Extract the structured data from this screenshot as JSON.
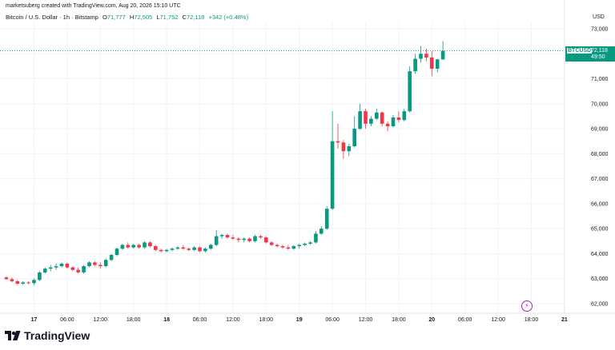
{
  "header": {
    "created_by": "marketsuberg created with TradingView.com, Aug 20, 2026 15:10 UTC"
  },
  "legend": {
    "title": "Bitcoin / U.S. Dollar · 1h · Bitstamp",
    "o_label": "O",
    "o_value": "71,777",
    "h_label": "H",
    "h_value": "72,505",
    "l_label": "L",
    "l_value": "71,752",
    "c_label": "C",
    "c_value": "72,118",
    "change": "+342 (+0.48%)"
  },
  "currency": "USD",
  "price_tag": {
    "symbol": "BTCUSD",
    "price": "72,118",
    "countdown": "49:50"
  },
  "logo_text": "TradingView",
  "colors": {
    "up": "#089981",
    "down": "#f23645",
    "grid": "#f0f3fa",
    "text": "#131722",
    "marker": "#9c27b0"
  },
  "chart_data": {
    "type": "candlestick",
    "ylim": [
      61600,
      73200
    ],
    "y_ticks": [
      62000,
      63000,
      64000,
      65000,
      66000,
      67000,
      68000,
      69000,
      70000,
      71000,
      72000,
      73000
    ],
    "y_tick_labels": [
      "62,000",
      "63,000",
      "64,000",
      "65,000",
      "66,000",
      "67,000",
      "68,000",
      "69,000",
      "70,000",
      "71,000",
      "72,000",
      "73,000"
    ],
    "x_ticks": [
      {
        "label": "17",
        "bold": true,
        "index": 5
      },
      {
        "label": "06:00",
        "bold": false,
        "index": 11
      },
      {
        "label": "12:00",
        "bold": false,
        "index": 17
      },
      {
        "label": "18:00",
        "bold": false,
        "index": 23
      },
      {
        "label": "18",
        "bold": true,
        "index": 29
      },
      {
        "label": "06:00",
        "bold": false,
        "index": 35
      },
      {
        "label": "12:00",
        "bold": false,
        "index": 41
      },
      {
        "label": "18:00",
        "bold": false,
        "index": 47
      },
      {
        "label": "19",
        "bold": true,
        "index": 53
      },
      {
        "label": "06:00",
        "bold": false,
        "index": 59
      },
      {
        "label": "12:00",
        "bold": false,
        "index": 65
      },
      {
        "label": "18:00",
        "bold": false,
        "index": 71
      },
      {
        "label": "20",
        "bold": true,
        "index": 77
      },
      {
        "label": "06:00",
        "bold": false,
        "index": 83
      },
      {
        "label": "12:00",
        "bold": false,
        "index": 89
      },
      {
        "label": "18:00",
        "bold": false,
        "index": 95
      },
      {
        "label": "21",
        "bold": true,
        "index": 101
      }
    ],
    "last_price": 72118,
    "candles": [
      {
        "o": 63050,
        "h": 63100,
        "l": 62950,
        "c": 62980
      },
      {
        "o": 62980,
        "h": 63050,
        "l": 62850,
        "c": 62900
      },
      {
        "o": 62900,
        "h": 62950,
        "l": 62750,
        "c": 62800
      },
      {
        "o": 62800,
        "h": 62900,
        "l": 62750,
        "c": 62850
      },
      {
        "o": 62850,
        "h": 62900,
        "l": 62780,
        "c": 62820
      },
      {
        "o": 62820,
        "h": 63000,
        "l": 62750,
        "c": 62950
      },
      {
        "o": 62950,
        "h": 63300,
        "l": 62900,
        "c": 63250
      },
      {
        "o": 63250,
        "h": 63450,
        "l": 63200,
        "c": 63400
      },
      {
        "o": 63400,
        "h": 63550,
        "l": 63300,
        "c": 63450
      },
      {
        "o": 63450,
        "h": 63600,
        "l": 63350,
        "c": 63500
      },
      {
        "o": 63500,
        "h": 63650,
        "l": 63450,
        "c": 63600
      },
      {
        "o": 63600,
        "h": 63650,
        "l": 63400,
        "c": 63450
      },
      {
        "o": 63450,
        "h": 63500,
        "l": 63300,
        "c": 63350
      },
      {
        "o": 63350,
        "h": 63450,
        "l": 63200,
        "c": 63250
      },
      {
        "o": 63250,
        "h": 63550,
        "l": 63200,
        "c": 63500
      },
      {
        "o": 63500,
        "h": 63700,
        "l": 63450,
        "c": 63650
      },
      {
        "o": 63650,
        "h": 63700,
        "l": 63500,
        "c": 63550
      },
      {
        "o": 63550,
        "h": 63650,
        "l": 63400,
        "c": 63500
      },
      {
        "o": 63500,
        "h": 63800,
        "l": 63450,
        "c": 63750
      },
      {
        "o": 63750,
        "h": 64000,
        "l": 63700,
        "c": 63950
      },
      {
        "o": 63950,
        "h": 64250,
        "l": 63900,
        "c": 64200
      },
      {
        "o": 64200,
        "h": 64400,
        "l": 64150,
        "c": 64350
      },
      {
        "o": 64350,
        "h": 64450,
        "l": 64200,
        "c": 64250
      },
      {
        "o": 64250,
        "h": 64400,
        "l": 64200,
        "c": 64350
      },
      {
        "o": 64350,
        "h": 64400,
        "l": 64200,
        "c": 64250
      },
      {
        "o": 64250,
        "h": 64500,
        "l": 64200,
        "c": 64450
      },
      {
        "o": 64450,
        "h": 64500,
        "l": 64250,
        "c": 64300
      },
      {
        "o": 64300,
        "h": 64350,
        "l": 64100,
        "c": 64150
      },
      {
        "o": 64150,
        "h": 64200,
        "l": 64050,
        "c": 64100
      },
      {
        "o": 64100,
        "h": 64200,
        "l": 64050,
        "c": 64150
      },
      {
        "o": 64150,
        "h": 64250,
        "l": 64100,
        "c": 64200
      },
      {
        "o": 64200,
        "h": 64300,
        "l": 64150,
        "c": 64250
      },
      {
        "o": 64250,
        "h": 64350,
        "l": 64150,
        "c": 64200
      },
      {
        "o": 64200,
        "h": 64250,
        "l": 64100,
        "c": 64150
      },
      {
        "o": 64150,
        "h": 64300,
        "l": 64100,
        "c": 64250
      },
      {
        "o": 64250,
        "h": 64300,
        "l": 64050,
        "c": 64100
      },
      {
        "o": 64100,
        "h": 64250,
        "l": 64050,
        "c": 64200
      },
      {
        "o": 64200,
        "h": 64400,
        "l": 64150,
        "c": 64350
      },
      {
        "o": 64350,
        "h": 64950,
        "l": 64300,
        "c": 64700
      },
      {
        "o": 64700,
        "h": 64800,
        "l": 64600,
        "c": 64750
      },
      {
        "o": 64750,
        "h": 64800,
        "l": 64600,
        "c": 64650
      },
      {
        "o": 64650,
        "h": 64750,
        "l": 64550,
        "c": 64600
      },
      {
        "o": 64600,
        "h": 64650,
        "l": 64450,
        "c": 64550
      },
      {
        "o": 64550,
        "h": 64650,
        "l": 64450,
        "c": 64600
      },
      {
        "o": 64600,
        "h": 64650,
        "l": 64450,
        "c": 64500
      },
      {
        "o": 64500,
        "h": 64750,
        "l": 64450,
        "c": 64700
      },
      {
        "o": 64700,
        "h": 64750,
        "l": 64600,
        "c": 64650
      },
      {
        "o": 64650,
        "h": 64700,
        "l": 64400,
        "c": 64450
      },
      {
        "o": 64450,
        "h": 64500,
        "l": 64300,
        "c": 64350
      },
      {
        "o": 64350,
        "h": 64400,
        "l": 64250,
        "c": 64300
      },
      {
        "o": 64300,
        "h": 64350,
        "l": 64200,
        "c": 64250
      },
      {
        "o": 64250,
        "h": 64350,
        "l": 64150,
        "c": 64200
      },
      {
        "o": 64200,
        "h": 64350,
        "l": 64150,
        "c": 64300
      },
      {
        "o": 64300,
        "h": 64400,
        "l": 64200,
        "c": 64350
      },
      {
        "o": 64350,
        "h": 64450,
        "l": 64300,
        "c": 64400
      },
      {
        "o": 64400,
        "h": 64500,
        "l": 64350,
        "c": 64450
      },
      {
        "o": 64450,
        "h": 64900,
        "l": 64400,
        "c": 64800
      },
      {
        "o": 64800,
        "h": 65100,
        "l": 64750,
        "c": 65000
      },
      {
        "o": 65000,
        "h": 65900,
        "l": 64950,
        "c": 65800
      },
      {
        "o": 65800,
        "h": 69700,
        "l": 65750,
        "c": 68500
      },
      {
        "o": 68500,
        "h": 69200,
        "l": 68200,
        "c": 68450
      },
      {
        "o": 68450,
        "h": 68550,
        "l": 67800,
        "c": 68100
      },
      {
        "o": 68100,
        "h": 68400,
        "l": 67900,
        "c": 68300
      },
      {
        "o": 68300,
        "h": 69500,
        "l": 68250,
        "c": 69000
      },
      {
        "o": 69000,
        "h": 70000,
        "l": 68950,
        "c": 69700
      },
      {
        "o": 69700,
        "h": 69800,
        "l": 69000,
        "c": 69200
      },
      {
        "o": 69200,
        "h": 69500,
        "l": 69100,
        "c": 69400
      },
      {
        "o": 69400,
        "h": 69800,
        "l": 69350,
        "c": 69650
      },
      {
        "o": 69650,
        "h": 69700,
        "l": 69100,
        "c": 69200
      },
      {
        "o": 69200,
        "h": 69300,
        "l": 68900,
        "c": 69100
      },
      {
        "o": 69100,
        "h": 69550,
        "l": 69050,
        "c": 69450
      },
      {
        "o": 69450,
        "h": 69700,
        "l": 69250,
        "c": 69350
      },
      {
        "o": 69350,
        "h": 69800,
        "l": 69300,
        "c": 69700
      },
      {
        "o": 69700,
        "h": 71500,
        "l": 69650,
        "c": 71300
      },
      {
        "o": 71300,
        "h": 72000,
        "l": 71200,
        "c": 71800
      },
      {
        "o": 71800,
        "h": 72300,
        "l": 71650,
        "c": 72000
      },
      {
        "o": 72000,
        "h": 72200,
        "l": 71700,
        "c": 71850
      },
      {
        "o": 71850,
        "h": 72100,
        "l": 71100,
        "c": 71400
      },
      {
        "o": 71400,
        "h": 71800,
        "l": 71250,
        "c": 71777
      },
      {
        "o": 71777,
        "h": 72505,
        "l": 71752,
        "c": 72118
      }
    ]
  }
}
